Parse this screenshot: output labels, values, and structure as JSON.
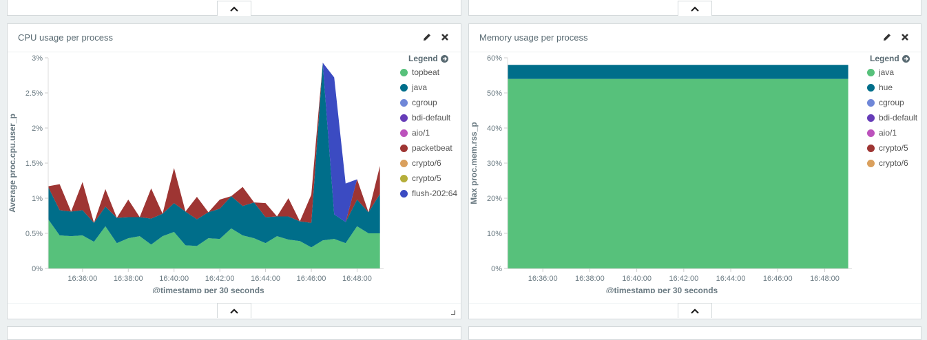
{
  "panels": [
    {
      "id": "cpu",
      "title": "CPU usage per process",
      "legend_title": "Legend",
      "colors": {
        "topbeat": "#57c17b",
        "java": "#006e8a",
        "cgroup": "#6f87d8",
        "bdi-default": "#663db8",
        "aio/1": "#bc52bc",
        "packetbeat": "#9e3533",
        "crypto/6": "#daa05d",
        "crypto/5": "#b5ae3a",
        "flush-202:64": "#3b4bc2"
      },
      "legend": [
        "topbeat",
        "java",
        "cgroup",
        "bdi-default",
        "aio/1",
        "packetbeat",
        "crypto/6",
        "crypto/5",
        "flush-202:64"
      ],
      "chart_data": {
        "type": "area",
        "stacked": true,
        "title": "",
        "xlabel": "@timestamp per 30 seconds",
        "ylabel": "Average proc.cpu.user_p",
        "ylim": [
          0,
          3
        ],
        "y_ticks": [
          "0%",
          "0.5%",
          "1%",
          "1.5%",
          "2%",
          "2.5%",
          "3%"
        ],
        "x_tick_labels": [
          "16:36:00",
          "16:38:00",
          "16:40:00",
          "16:42:00",
          "16:44:00",
          "16:46:00",
          "16:48:00"
        ],
        "x_tick_minutes": [
          36,
          38,
          40,
          42,
          44,
          46,
          48
        ],
        "x_minutes": [
          34.5,
          35.0,
          35.5,
          36.0,
          36.5,
          37.0,
          37.5,
          38.0,
          38.5,
          39.0,
          39.5,
          40.0,
          40.5,
          41.0,
          41.5,
          42.0,
          42.5,
          43.0,
          43.5,
          44.0,
          44.5,
          45.0,
          45.5,
          46.0,
          46.5,
          47.0,
          47.5,
          48.0,
          48.5,
          49.0
        ],
        "series": [
          {
            "name": "topbeat",
            "values": [
              0.7,
              0.47,
              0.46,
              0.47,
              0.38,
              0.6,
              0.36,
              0.43,
              0.46,
              0.34,
              0.46,
              0.52,
              0.33,
              0.32,
              0.43,
              0.42,
              0.57,
              0.47,
              0.43,
              0.36,
              0.46,
              0.41,
              0.39,
              0.3,
              0.4,
              0.42,
              0.36,
              0.6,
              0.5,
              0.5
            ]
          },
          {
            "name": "java",
            "values": [
              0.46,
              0.36,
              0.35,
              0.36,
              0.27,
              0.28,
              0.36,
              0.3,
              0.27,
              0.37,
              0.32,
              0.41,
              0.48,
              0.38,
              0.37,
              0.43,
              0.46,
              0.42,
              0.51,
              0.37,
              0.28,
              0.33,
              0.28,
              0.35,
              2.52,
              0.35,
              0.3,
              0.38,
              0.3,
              0.56
            ]
          },
          {
            "name": "packetbeat",
            "values": [
              0.01,
              0.37,
              0.0,
              0.4,
              0.0,
              0.25,
              0.0,
              0.25,
              0.0,
              0.43,
              0.0,
              0.5,
              0.0,
              0.32,
              0.0,
              0.13,
              0.0,
              0.27,
              0.0,
              0.2,
              0.0,
              0.26,
              0.0,
              0.4,
              0.0,
              0.0,
              0.0,
              0.29,
              0.0,
              0.4
            ]
          },
          {
            "name": "flush-202:64",
            "values": [
              0,
              0,
              0,
              0,
              0,
              0,
              0,
              0,
              0,
              0,
              0,
              0,
              0,
              0,
              0,
              0,
              0,
              0,
              0,
              0,
              0,
              0,
              0,
              0,
              0.01,
              1.95,
              0.55,
              0,
              0,
              0
            ]
          }
        ]
      }
    },
    {
      "id": "mem",
      "title": "Memory usage per process",
      "legend_title": "Legend",
      "colors": {
        "java": "#57c17b",
        "hue": "#006e8a",
        "cgroup": "#6f87d8",
        "bdi-default": "#663db8",
        "aio/1": "#bc52bc",
        "crypto/5": "#9e3533",
        "crypto/6": "#daa05d"
      },
      "legend": [
        "java",
        "hue",
        "cgroup",
        "bdi-default",
        "aio/1",
        "crypto/5",
        "crypto/6"
      ],
      "chart_data": {
        "type": "area",
        "stacked": true,
        "title": "",
        "xlabel": "@timestamp per 30 seconds",
        "ylabel": "Max proc.mem.rss_p",
        "ylim": [
          0,
          60
        ],
        "y_ticks": [
          "0%",
          "10%",
          "20%",
          "30%",
          "40%",
          "50%",
          "60%"
        ],
        "x_tick_labels": [
          "16:36:00",
          "16:38:00",
          "16:40:00",
          "16:42:00",
          "16:44:00",
          "16:46:00",
          "16:48:00"
        ],
        "x_tick_minutes": [
          36,
          38,
          40,
          42,
          44,
          46,
          48
        ],
        "x_minutes": [
          34.5,
          49.0
        ],
        "series": [
          {
            "name": "java",
            "values": [
              54,
              54
            ]
          },
          {
            "name": "hue",
            "values": [
              4,
              4
            ]
          }
        ]
      }
    }
  ]
}
